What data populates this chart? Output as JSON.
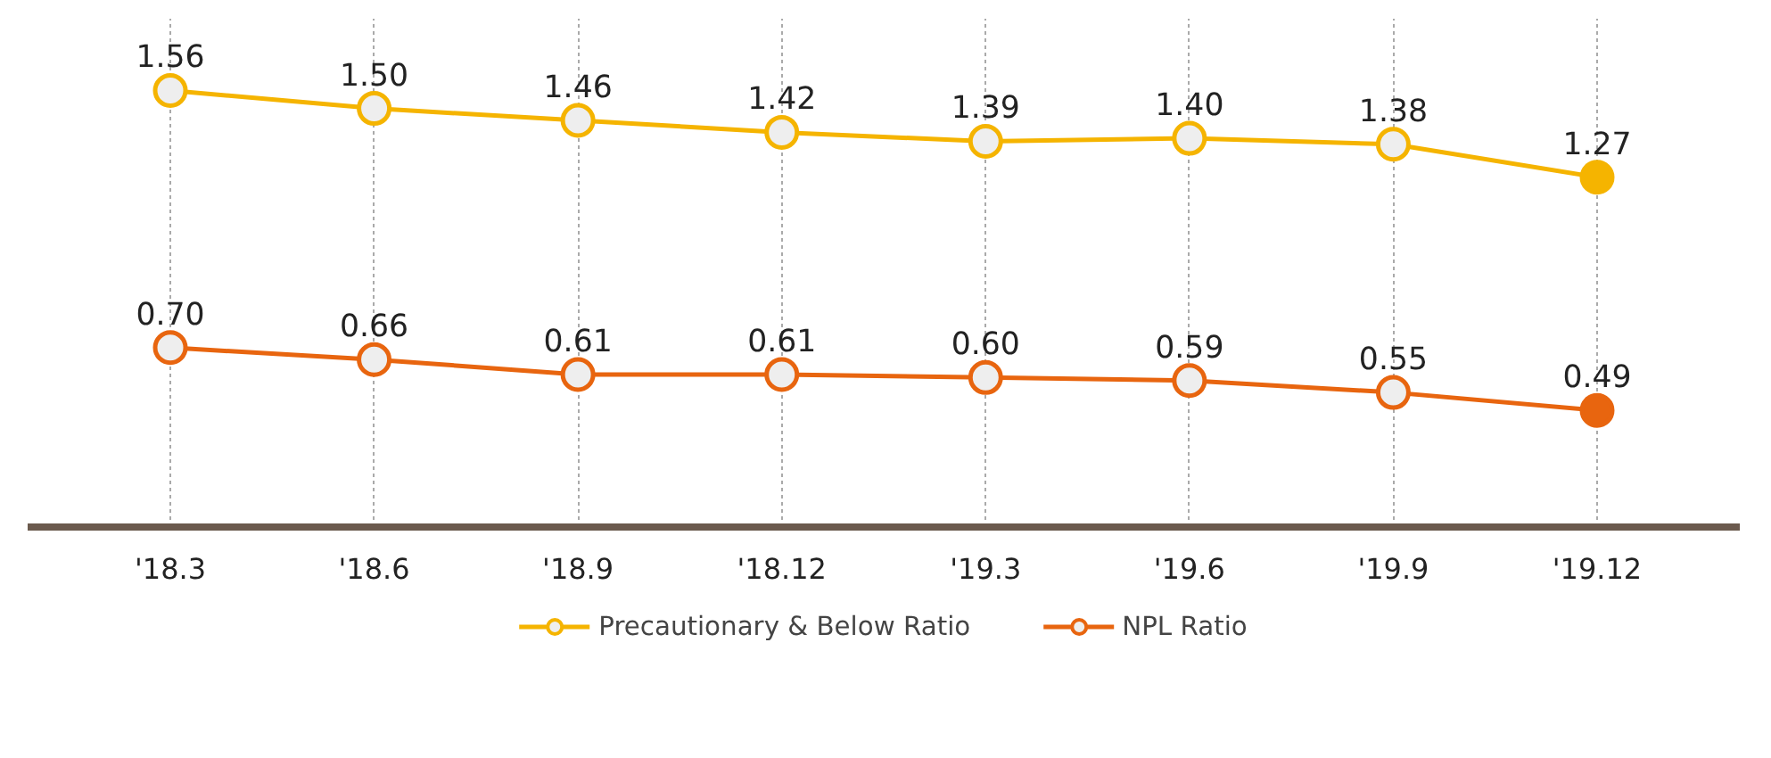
{
  "chart_data": {
    "type": "line",
    "categories": [
      "'18.3",
      "'18.6",
      "'18.9",
      "'18.12",
      "'19.3",
      "'19.6",
      "'19.9",
      "'19.12"
    ],
    "series": [
      {
        "name": "Precautionary & Below Ratio",
        "color": "#f5b400",
        "values": [
          1.56,
          1.5,
          1.46,
          1.42,
          1.39,
          1.4,
          1.38,
          1.27
        ],
        "value_labels": [
          "1.56",
          "1.50",
          "1.46",
          "1.42",
          "1.39",
          "1.40",
          "1.38",
          "1.27"
        ],
        "colors": [
          "#eeeeee",
          "#eeeeee",
          "#eeeeee",
          "#eeeeee",
          "#eeeeee",
          "#eeeeee",
          "#eeeeee",
          "#f5b400"
        ]
      },
      {
        "name": "NPL Ratio",
        "color": "#e8650f",
        "values": [
          0.7,
          0.66,
          0.61,
          0.61,
          0.6,
          0.59,
          0.55,
          0.49
        ],
        "value_labels": [
          "0.70",
          "0.66",
          "0.61",
          "0.61",
          "0.60",
          "0.59",
          "0.55",
          "0.49"
        ],
        "colors": [
          "#eeeeee",
          "#eeeeee",
          "#eeeeee",
          "#eeeeee",
          "#eeeeee",
          "#eeeeee",
          "#eeeeee",
          "#e8650f"
        ]
      }
    ],
    "ylim": [
      0.1,
      1.8
    ],
    "tick_labels": "x",
    "grid": "x",
    "legend": "bottom",
    "marker": "circle",
    "line_style": "solid"
  }
}
